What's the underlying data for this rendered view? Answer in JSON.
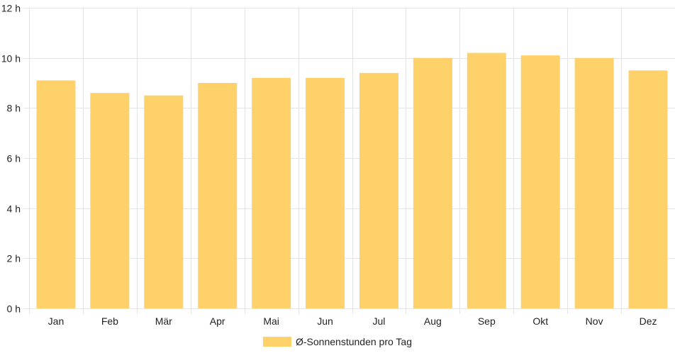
{
  "chart_data": {
    "type": "bar",
    "categories": [
      "Jan",
      "Feb",
      "Mär",
      "Apr",
      "Mai",
      "Jun",
      "Jul",
      "Aug",
      "Sep",
      "Okt",
      "Nov",
      "Dez"
    ],
    "series": [
      {
        "name": "Ø-Sonnenstunden pro Tag",
        "values": [
          9.1,
          8.6,
          8.5,
          9.0,
          9.2,
          9.2,
          9.4,
          10.0,
          10.2,
          10.1,
          10.0,
          9.5
        ],
        "color": "#FED16A"
      }
    ],
    "y_ticks": [
      0,
      2,
      4,
      6,
      8,
      10,
      12
    ],
    "y_tick_suffix": " h",
    "ylim": [
      0,
      12
    ],
    "grid": true,
    "legend": "bottom-center"
  }
}
